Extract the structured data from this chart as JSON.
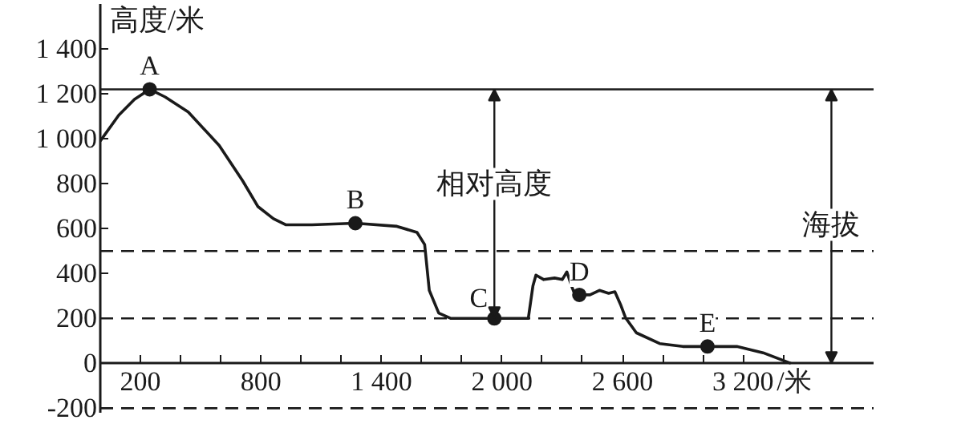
{
  "chart_data": {
    "type": "line",
    "ylabel": "高度/米",
    "xlabel": "/米",
    "xlim": [
      0,
      3850
    ],
    "ylim": [
      -220,
      1600
    ],
    "xticks": [
      {
        "value": 200,
        "label": "200"
      },
      {
        "value": 400,
        "label": null
      },
      {
        "value": 600,
        "label": null
      },
      {
        "value": 800,
        "label": "800"
      },
      {
        "value": 1000,
        "label": null
      },
      {
        "value": 1200,
        "label": null
      },
      {
        "value": 1400,
        "label": "1 400"
      },
      {
        "value": 1600,
        "label": null
      },
      {
        "value": 1800,
        "label": null
      },
      {
        "value": 2000,
        "label": "2 000"
      },
      {
        "value": 2200,
        "label": null
      },
      {
        "value": 2400,
        "label": null
      },
      {
        "value": 2600,
        "label": "2 600"
      },
      {
        "value": 2800,
        "label": null
      },
      {
        "value": 3000,
        "label": null
      },
      {
        "value": 3200,
        "label": "3 200"
      },
      {
        "value": 3400,
        "label": null
      }
    ],
    "yticks": [
      {
        "value": -200,
        "label": "-200"
      },
      0,
      200,
      400,
      600,
      800,
      {
        "value": 1000,
        "label": "1 000"
      },
      {
        "value": 1200,
        "label": "1 200"
      },
      {
        "value": 1400,
        "label": "1 400"
      }
    ],
    "grid": false,
    "line_style": "solid",
    "series": [
      {
        "color": "#1a1a1a",
        "x": [
          0,
          92,
          170,
          246,
          323,
          438,
          592,
          708,
          785,
          862,
          923,
          1054,
          1270,
          1477,
          1577,
          1615,
          1638,
          1685,
          1746,
          1962,
          2131,
          2154,
          2169,
          2208,
          2262,
          2300,
          2323,
          2346,
          2369,
          2385,
          2438,
          2485,
          2531,
          2562,
          2592,
          2615,
          2669,
          2785,
          2900,
          3023,
          3169,
          3300,
          3438
        ],
        "values": [
          990,
          1105,
          1175,
          1220,
          1186,
          1119,
          970,
          814,
          698,
          644,
          617,
          617,
          624,
          610,
          583,
          529,
          325,
          224,
          200,
          200,
          200,
          345,
          393,
          373,
          380,
          373,
          407,
          345,
          292,
          305,
          305,
          325,
          312,
          319,
          258,
          203,
          136,
          88,
          75,
          75,
          75,
          47,
          0
        ]
      },
      {
        "type": "scatter",
        "marker": "circle",
        "color": "#1a1a1a",
        "x": [
          246,
          1270,
          1962,
          2385,
          3023
        ],
        "values": [
          1220,
          624,
          200,
          305,
          75
        ]
      }
    ],
    "ref_lines": [
      {
        "axis": "y",
        "value": 1220,
        "label": null,
        "line_style": "solid",
        "color": "#1a1a1a"
      },
      {
        "axis": "y",
        "value": 500,
        "label": null,
        "line_style": "dashed",
        "color": "#1a1a1a"
      },
      {
        "axis": "y",
        "value": 200,
        "label": null,
        "line_style": "dashed",
        "color": "#1a1a1a"
      },
      {
        "axis": "y",
        "value": -200,
        "label": null,
        "line_style": "dashed",
        "color": "#1a1a1a"
      }
    ],
    "annotations": [
      {
        "text": "A",
        "x": 246,
        "y": 1220
      },
      {
        "text": "B",
        "x": 1270,
        "y": 624
      },
      {
        "text": "C",
        "x": 1962,
        "y": 200
      },
      {
        "text": "D",
        "x": 2385,
        "y": 305
      },
      {
        "text": "E",
        "x": 3023,
        "y": 75
      },
      {
        "text": "相对高度",
        "x": 1962,
        "y": 200
      },
      {
        "text": "海拔",
        "x": 3640,
        "y": 1220
      }
    ]
  }
}
